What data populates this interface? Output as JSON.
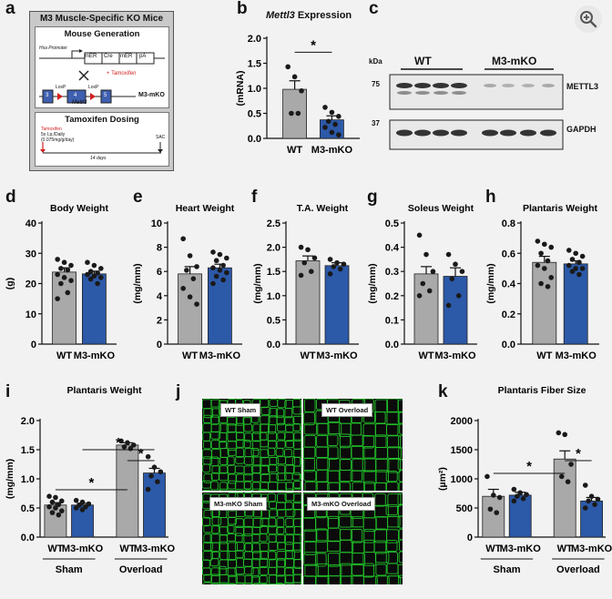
{
  "ui": {
    "zoom_icon": "zoom-in-icon"
  },
  "colors": {
    "wt": "#a9a9a9",
    "ko": "#2c59a8",
    "dot": "#1a1a1a",
    "tamoxifen": "#d11f1f",
    "micro_green": "#22c42a"
  },
  "panels": {
    "a": {
      "letter": "a",
      "title": "M3 Muscle-Specific KO Mice",
      "gen_title": "Mouse Generation",
      "promoter": "Hsa Promoter",
      "construct": [
        "mER",
        "Cre",
        "mER",
        "pA"
      ],
      "tamoxifen_note": "+ Tamoxifen",
      "cross": "×",
      "loxp1": "LoxP",
      "loxp2": "LoxP",
      "exons": [
        "3",
        "4",
        "5"
      ],
      "gene": "Mettl3",
      "strain": "M3-mKO",
      "dosing_title": "Tamoxifen Dosing",
      "tam_label": "Tamoxifen",
      "tam_dose1": "5x I.p./Daily",
      "tam_dose2": "(0.075mg/g/day)",
      "sac": "SAC",
      "duration": "14 days"
    },
    "b": {
      "letter": "b",
      "title_gene": "Mettl3",
      "title_rest": " Expression",
      "sig": "*"
    },
    "c": {
      "letter": "c",
      "kda": "kDa",
      "wt": "WT",
      "ko": "M3-mKO",
      "marker75": "75",
      "marker37": "37",
      "protein1": "METTL3",
      "protein2": "GAPDH"
    },
    "d": {
      "letter": "d"
    },
    "e": {
      "letter": "e"
    },
    "f": {
      "letter": "f"
    },
    "g": {
      "letter": "g"
    },
    "h": {
      "letter": "h"
    },
    "i": {
      "letter": "i"
    },
    "j": {
      "letter": "j",
      "labels": [
        "WT Sham",
        "WT Overload",
        "M3-mKO Sham",
        "M3-mKO Overload"
      ]
    },
    "k": {
      "letter": "k"
    }
  },
  "chart_data": [
    {
      "id": "b",
      "type": "bar",
      "title": "Mettl3 Expression",
      "ylabel": "(mRNA)",
      "categories": [
        "WT",
        "M3-mKO"
      ],
      "values": [
        0.98,
        0.37
      ],
      "errors": [
        0.17,
        0.08
      ],
      "ylim": [
        0,
        2.0
      ],
      "yticks": [
        0,
        0.5,
        1.0,
        1.5,
        2.0
      ],
      "points": [
        [
          1.43,
          1.23,
          0.95,
          0.5,
          0.5
        ],
        [
          0.62,
          0.52,
          0.44,
          0.34,
          0.28,
          0.22,
          0.12,
          0.07
        ]
      ]
    },
    {
      "id": "d",
      "type": "bar",
      "title": "Body Weight",
      "ylabel": "(g)",
      "categories": [
        "WT",
        "M3-mKO"
      ],
      "values": [
        23.8,
        23.2
      ],
      "errors": [
        1.4,
        0.9
      ],
      "ylim": [
        0,
        40
      ],
      "yticks": [
        0,
        10,
        20,
        30,
        40
      ],
      "points": [
        [
          28,
          27,
          26,
          25,
          24.5,
          23,
          22,
          21,
          20,
          17,
          15
        ],
        [
          27,
          26,
          25,
          24,
          23.5,
          23,
          22.5,
          22,
          21.5,
          20
        ]
      ]
    },
    {
      "id": "e",
      "type": "bar",
      "title": "Heart Weight",
      "ylabel": "(mg/mm)",
      "categories": [
        "WT",
        "M3-mKO"
      ],
      "values": [
        5.8,
        6.3
      ],
      "errors": [
        0.6,
        0.3
      ],
      "ylim": [
        0,
        10
      ],
      "yticks": [
        0,
        2,
        4,
        6,
        8,
        10
      ],
      "points": [
        [
          8.7,
          7.3,
          6.4,
          6.1,
          5.4,
          4.6,
          3.9,
          3.3
        ],
        [
          7.6,
          7.4,
          7.1,
          6.9,
          6.5,
          6.3,
          6.1,
          5.9,
          5.6,
          5.3,
          5.0
        ]
      ]
    },
    {
      "id": "f",
      "type": "bar",
      "title": "T.A. Weight",
      "ylabel": "(mg/mm)",
      "categories": [
        "WT",
        "M3-mKO"
      ],
      "values": [
        1.72,
        1.62
      ],
      "errors": [
        0.1,
        0.06
      ],
      "ylim": [
        0,
        2.5
      ],
      "yticks": [
        0.0,
        0.5,
        1.0,
        1.5,
        2.0,
        2.5
      ],
      "points": [
        [
          2.0,
          1.95,
          1.78,
          1.68,
          1.5,
          1.42
        ],
        [
          1.75,
          1.68,
          1.65,
          1.6,
          1.55,
          1.45
        ]
      ]
    },
    {
      "id": "g",
      "type": "bar",
      "title": "Soleus Weight",
      "ylabel": "(mg/mm)",
      "categories": [
        "WT",
        "M3-mKO"
      ],
      "values": [
        0.29,
        0.28
      ],
      "errors": [
        0.03,
        0.035
      ],
      "ylim": [
        0,
        0.5
      ],
      "yticks": [
        0.0,
        0.1,
        0.2,
        0.3,
        0.4,
        0.5
      ],
      "points": [
        [
          0.45,
          0.37,
          0.3,
          0.25,
          0.22,
          0.2
        ],
        [
          0.37,
          0.33,
          0.3,
          0.27,
          0.2,
          0.16
        ]
      ]
    },
    {
      "id": "h",
      "type": "bar",
      "title": "Plantaris Weight",
      "ylabel": "(mg/mm)",
      "categories": [
        "WT",
        "M3-mKO"
      ],
      "values": [
        0.54,
        0.53
      ],
      "errors": [
        0.04,
        0.02
      ],
      "ylim": [
        0,
        0.8
      ],
      "yticks": [
        0.0,
        0.2,
        0.4,
        0.6,
        0.8
      ],
      "points": [
        [
          0.68,
          0.66,
          0.64,
          0.6,
          0.55,
          0.52,
          0.5,
          0.44,
          0.4,
          0.38
        ],
        [
          0.62,
          0.6,
          0.58,
          0.56,
          0.54,
          0.52,
          0.5,
          0.5,
          0.48,
          0.46
        ]
      ]
    },
    {
      "id": "i",
      "type": "bar",
      "title": "Plantaris Weight",
      "ylabel": "(mg/mm)",
      "categories": [
        "WT",
        "M3-mKO",
        "WT",
        "M3-mKO"
      ],
      "groups": [
        "Sham",
        "Overload"
      ],
      "series_of_bar": [
        "WT",
        "M3-mKO",
        "WT",
        "M3-mKO"
      ],
      "values": [
        0.55,
        0.55,
        1.58,
        1.1
      ],
      "errors": [
        0.04,
        0.03,
        0.04,
        0.08
      ],
      "ylim": [
        0,
        2.0
      ],
      "yticks": [
        0.0,
        0.5,
        1.0,
        1.5,
        2.0
      ],
      "points": [
        [
          0.7,
          0.68,
          0.62,
          0.6,
          0.56,
          0.52,
          0.5,
          0.45,
          0.42,
          0.38
        ],
        [
          0.63,
          0.6,
          0.57,
          0.55,
          0.52,
          0.5,
          0.47
        ],
        [
          1.65,
          1.62,
          1.58,
          1.55,
          1.52
        ],
        [
          1.38,
          1.2,
          1.12,
          1.05,
          0.95,
          0.82
        ]
      ],
      "significance": [
        {
          "from": 0,
          "to": 2,
          "label": "*"
        },
        {
          "from": 2,
          "to": 3,
          "label": "*"
        },
        {
          "from": 1,
          "to": 3,
          "label": "*"
        }
      ]
    },
    {
      "id": "k",
      "type": "bar",
      "title": "Plantaris Fiber Size",
      "ylabel": "(µm²)",
      "categories": [
        "WT",
        "M3-mKO",
        "WT",
        "M3-mKO"
      ],
      "groups": [
        "Sham",
        "Overload"
      ],
      "series_of_bar": [
        "WT",
        "M3-mKO",
        "WT",
        "M3-mKO"
      ],
      "values": [
        700,
        720,
        1340,
        620
      ],
      "errors": [
        120,
        50,
        140,
        60
      ],
      "ylim": [
        0,
        2000
      ],
      "yticks": [
        0,
        500,
        1000,
        1500,
        2000
      ],
      "points": [
        [
          1040,
          720,
          680,
          480,
          420
        ],
        [
          820,
          760,
          730,
          700,
          660,
          620
        ],
        [
          1790,
          1760,
          1250,
          1040,
          950
        ],
        [
          890,
          700,
          650,
          620,
          560,
          500
        ]
      ],
      "significance": [
        {
          "from": 0,
          "to": 2,
          "label": "*"
        },
        {
          "from": 2,
          "to": 3,
          "label": "*"
        }
      ]
    }
  ]
}
